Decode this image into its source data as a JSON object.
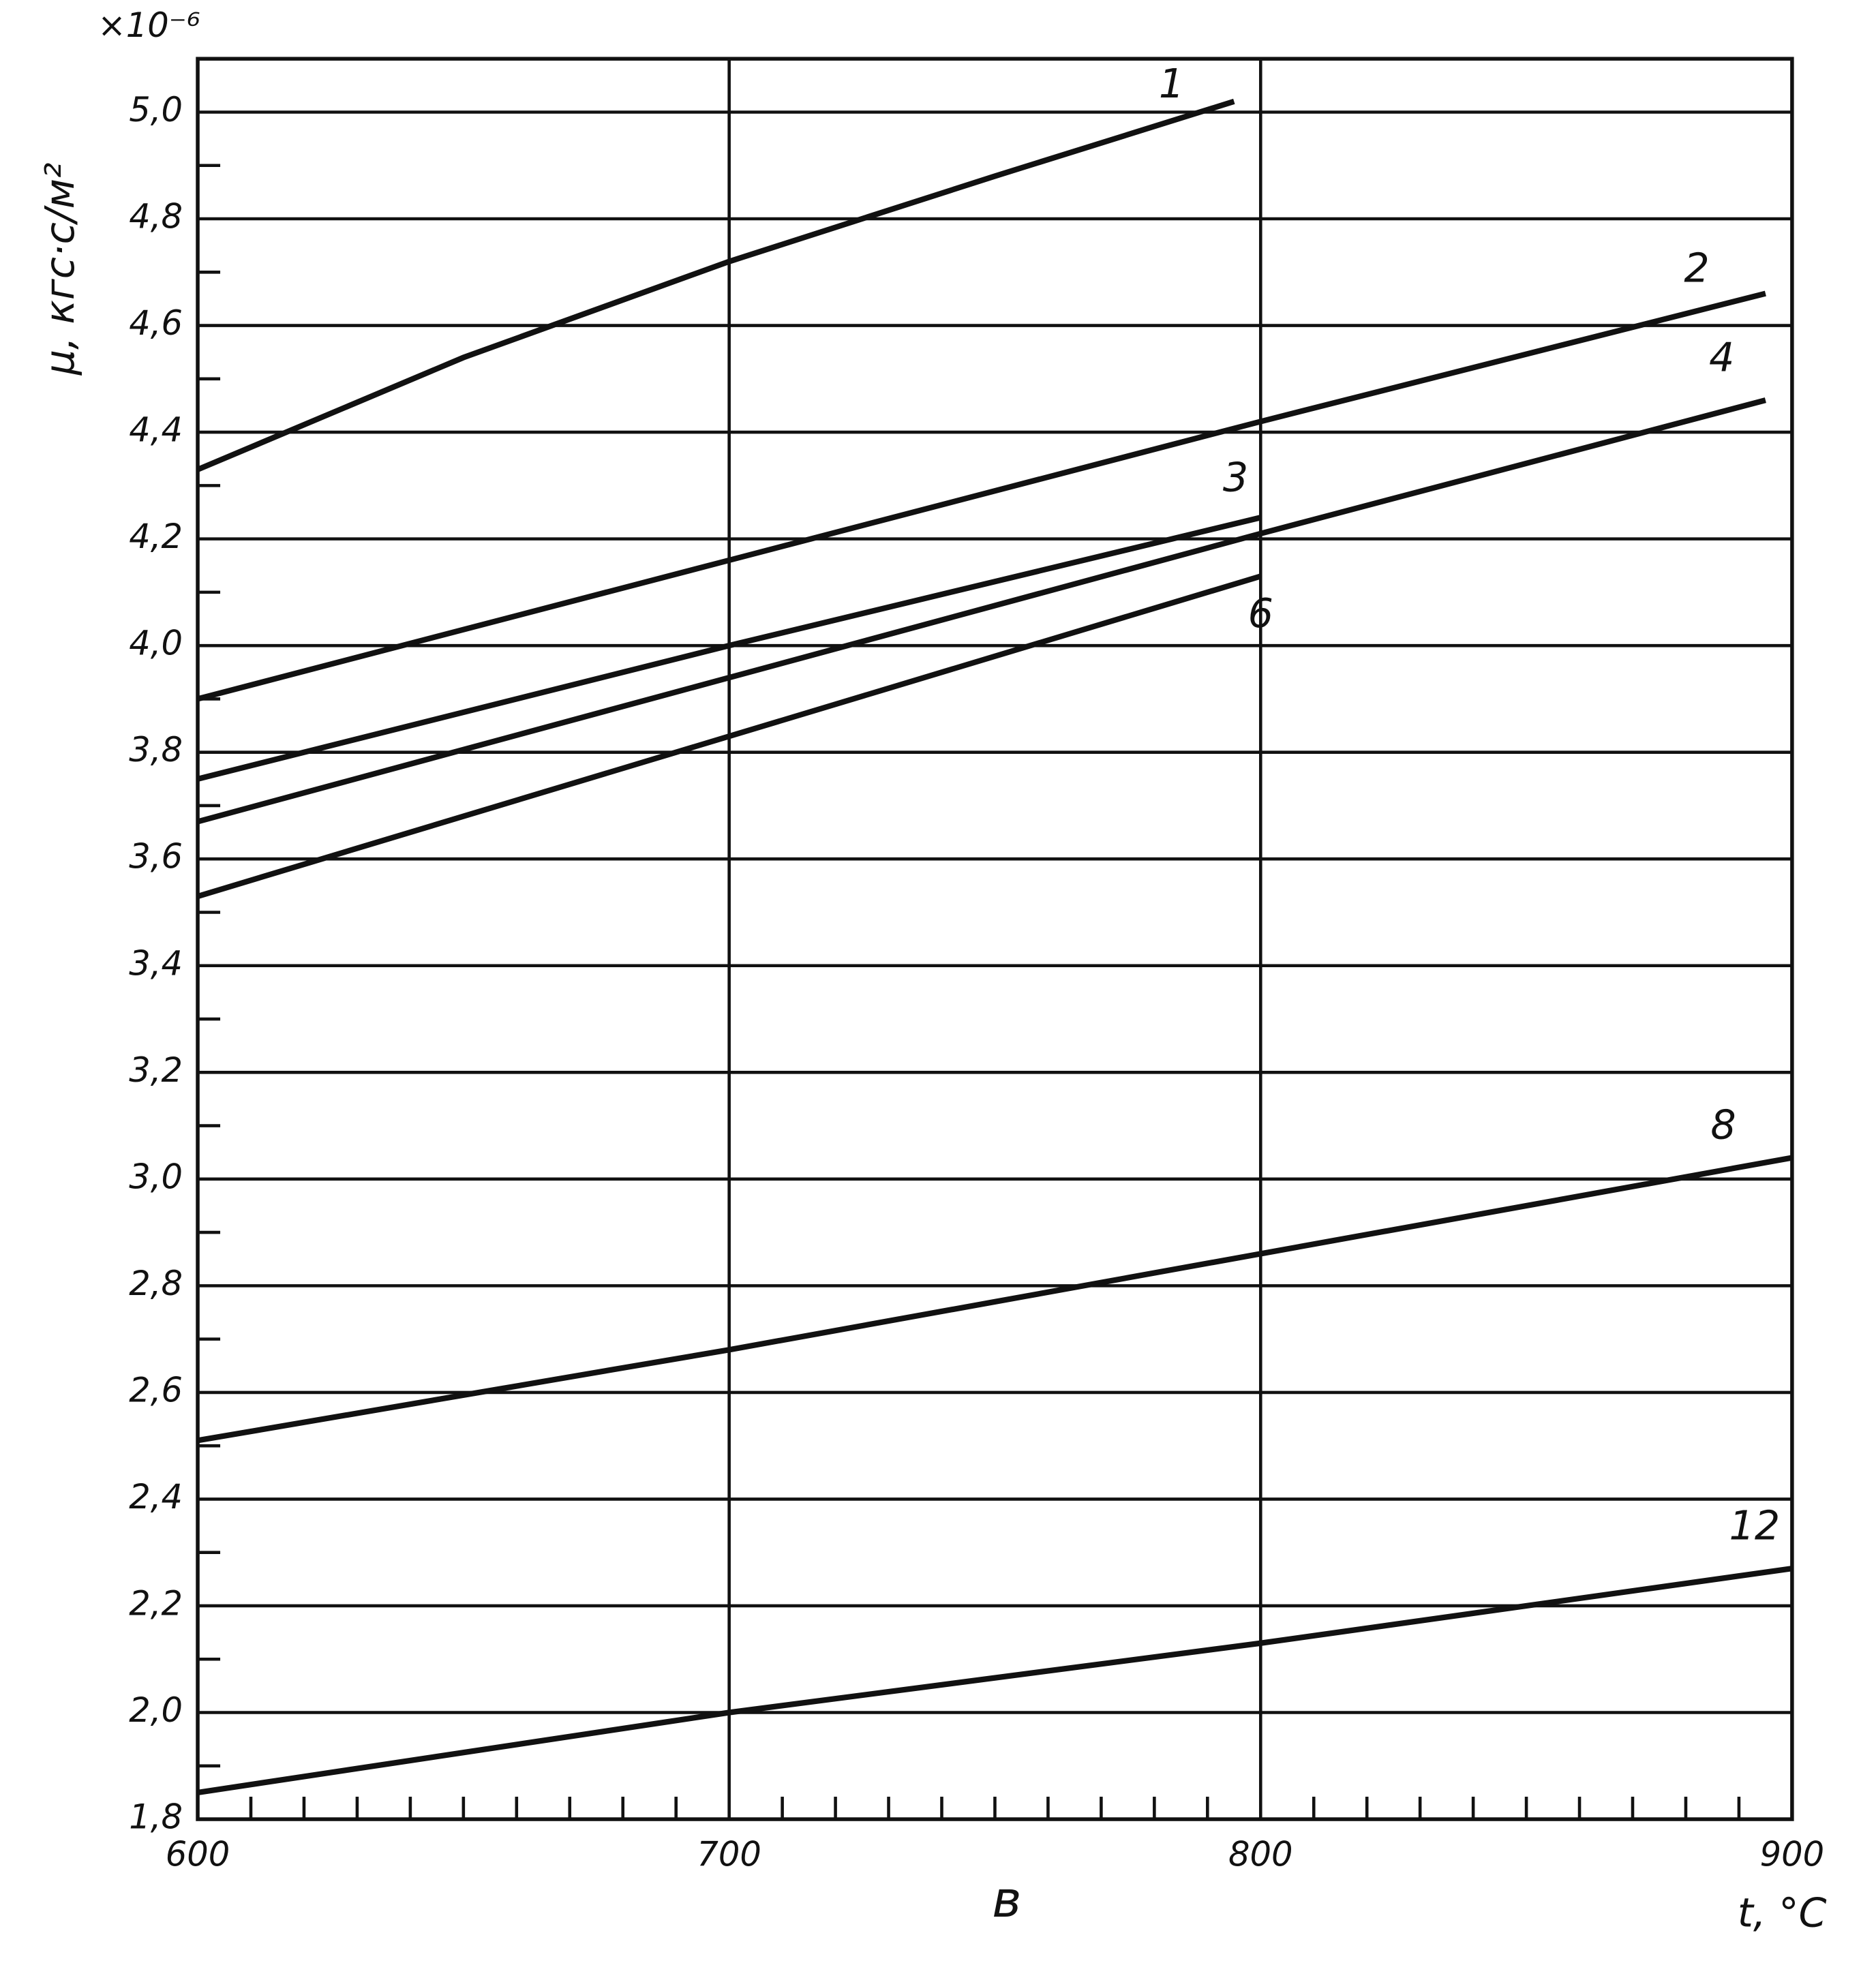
{
  "chart_data": {
    "type": "line",
    "ylabel": "μ, кгс·с/м²",
    "y_multiplier": "×10⁻⁶",
    "xlabel": "t, °C",
    "panel_label": "в",
    "xlim": [
      600,
      900
    ],
    "xticks": [
      600,
      700,
      800,
      900
    ],
    "xminorticks": [
      610,
      620,
      630,
      640,
      650,
      660,
      670,
      680,
      690,
      710,
      720,
      730,
      740,
      750,
      760,
      770,
      780,
      790,
      810,
      820,
      830,
      840,
      850,
      860,
      870,
      880,
      890
    ],
    "ylim": [
      1.8,
      5.1
    ],
    "yticks": [
      {
        "value": 1.8,
        "label": "1,8"
      },
      {
        "value": 2.0,
        "label": "2,0"
      },
      {
        "value": 2.2,
        "label": "2,2"
      },
      {
        "value": 2.4,
        "label": "2,4"
      },
      {
        "value": 2.6,
        "label": "2,6"
      },
      {
        "value": 2.8,
        "label": "2,8"
      },
      {
        "value": 3.0,
        "label": "3,0"
      },
      {
        "value": 3.2,
        "label": "3,2"
      },
      {
        "value": 3.4,
        "label": "3,4"
      },
      {
        "value": 3.6,
        "label": "3,6"
      },
      {
        "value": 3.8,
        "label": "3,8"
      },
      {
        "value": 4.0,
        "label": "4,0"
      },
      {
        "value": 4.2,
        "label": "4,2"
      },
      {
        "value": 4.4,
        "label": "4,4"
      },
      {
        "value": 4.6,
        "label": "4,6"
      },
      {
        "value": 4.8,
        "label": "4,8"
      },
      {
        "value": 5.0,
        "label": "5,0"
      }
    ],
    "yminorticks": [
      1.9,
      2.1,
      2.3,
      2.5,
      2.7,
      2.9,
      3.1,
      3.3,
      3.5,
      3.7,
      3.9,
      4.1,
      4.3,
      4.5,
      4.7,
      4.9
    ],
    "grid": true,
    "series": [
      {
        "name": "1",
        "color": "#111111",
        "x": [
          600,
          650,
          700,
          750,
          795
        ],
        "values": [
          4.33,
          4.54,
          4.72,
          4.88,
          5.02
        ]
      },
      {
        "name": "2",
        "color": "#111111",
        "x": [
          600,
          700,
          800,
          895
        ],
        "values": [
          3.9,
          4.16,
          4.42,
          4.66
        ]
      },
      {
        "name": "3",
        "color": "#111111",
        "x": [
          600,
          700,
          800
        ],
        "values": [
          3.75,
          4.0,
          4.24
        ]
      },
      {
        "name": "4",
        "color": "#111111",
        "x": [
          600,
          700,
          800,
          895
        ],
        "values": [
          3.67,
          3.94,
          4.21,
          4.46
        ]
      },
      {
        "name": "6",
        "color": "#111111",
        "x": [
          600,
          700,
          800
        ],
        "values": [
          3.53,
          3.83,
          4.13
        ]
      },
      {
        "name": "8",
        "color": "#111111",
        "x": [
          600,
          700,
          800,
          900
        ],
        "values": [
          2.51,
          2.68,
          2.86,
          3.04
        ]
      },
      {
        "name": "12",
        "color": "#111111",
        "x": [
          600,
          700,
          800,
          900
        ],
        "values": [
          1.85,
          2.0,
          2.13,
          2.27
        ]
      }
    ]
  }
}
